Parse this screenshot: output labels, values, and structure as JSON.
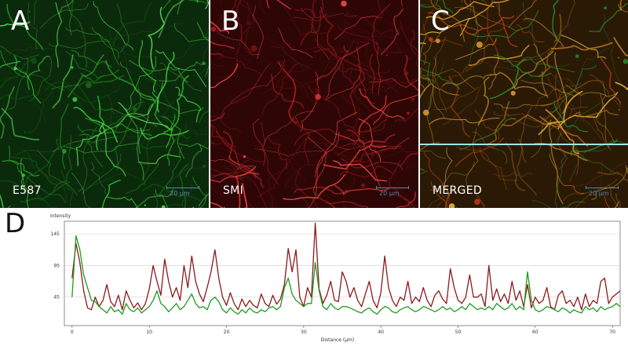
{
  "panels": [
    {
      "letter": "A",
      "label": "E587",
      "scale": "20 µm",
      "channel": "green",
      "base": "#0b2a0b",
      "accent": "#3fd13f"
    },
    {
      "letter": "B",
      "label": "SMI",
      "scale": "20 µm",
      "channel": "red",
      "base": "#2e0606",
      "accent": "#e23434"
    },
    {
      "letter": "C",
      "label": "MERGED",
      "scale": "20 µm",
      "channel": "merged",
      "base": "#2a1a05",
      "accent": "#e0a030",
      "line_color": "#9fe6e6"
    }
  ],
  "plot": {
    "letter": "D",
    "ylabel": "Intensity",
    "xlabel": "Distance (µm)",
    "colors": {
      "red": "#8b1a1a",
      "green": "#1f9a1f"
    }
  },
  "chart_data": {
    "type": "line",
    "title": "",
    "xlabel": "Distance (µm)",
    "ylabel": "Intensity",
    "xlim": [
      -1,
      71
    ],
    "ylim": [
      0,
      165
    ],
    "xticks": [
      0,
      10,
      20,
      30,
      40,
      50,
      60,
      70
    ],
    "yticks": [
      45,
      95,
      145
    ],
    "grid": true,
    "series": [
      {
        "color": "#8b1a1a",
        "x": [
          0,
          0.5,
          1,
          1.5,
          2,
          2.5,
          3,
          3.5,
          4,
          4.5,
          5,
          5.5,
          6,
          6.5,
          7,
          7.5,
          8,
          8.5,
          9,
          9.5,
          10,
          10.5,
          11,
          11.5,
          12,
          12.5,
          13,
          13.5,
          14,
          14.5,
          15,
          15.5,
          16,
          16.5,
          17,
          17.5,
          18,
          18.5,
          19,
          19.5,
          20,
          20.5,
          21,
          21.5,
          22,
          22.5,
          23,
          23.5,
          24,
          24.5,
          25,
          25.5,
          26,
          26.5,
          27,
          27.5,
          28,
          28.5,
          29,
          29.5,
          30,
          30.5,
          31,
          31.5,
          32,
          32.5,
          33,
          33.5,
          34,
          34.5,
          35,
          35.5,
          36,
          36.5,
          37,
          37.5,
          38,
          38.5,
          39,
          39.5,
          40,
          40.5,
          41,
          41.5,
          42,
          42.5,
          43,
          43.5,
          44,
          44.5,
          45,
          45.5,
          46,
          46.5,
          47,
          47.5,
          48,
          48.5,
          49,
          49.5,
          50,
          50.5,
          51,
          51.5,
          52,
          52.5,
          53,
          53.5,
          54,
          54.5,
          55,
          55.5,
          56,
          56.5,
          57,
          57.5,
          58,
          58.5,
          59,
          59.5,
          60,
          60.5,
          61,
          61.5,
          62,
          62.5,
          63,
          63.5,
          64,
          64.5,
          65,
          65.5,
          66,
          66.5,
          67,
          67.5,
          68,
          68.5,
          69,
          69.5,
          70,
          70.5,
          71
        ],
        "y": [
          75,
          130,
          100,
          55,
          28,
          25,
          45,
          30,
          40,
          65,
          38,
          30,
          48,
          25,
          55,
          40,
          28,
          36,
          25,
          35,
          58,
          95,
          70,
          48,
          105,
          70,
          45,
          60,
          40,
          95,
          60,
          110,
          70,
          50,
          38,
          60,
          85,
          120,
          75,
          45,
          32,
          52,
          35,
          25,
          42,
          30,
          40,
          32,
          28,
          50,
          35,
          30,
          48,
          34,
          42,
          65,
          122,
          85,
          120,
          45,
          30,
          60,
          45,
          162,
          58,
          35,
          48,
          70,
          40,
          38,
          85,
          70,
          45,
          60,
          40,
          30,
          50,
          70,
          40,
          28,
          52,
          110,
          60,
          40,
          30,
          45,
          40,
          70,
          35,
          45,
          38,
          60,
          40,
          30,
          48,
          55,
          42,
          35,
          90,
          60,
          40,
          35,
          45,
          80,
          45,
          45,
          50,
          30,
          95,
          40,
          58,
          38,
          50,
          35,
          70,
          40,
          55,
          30,
          65,
          28,
          45,
          35,
          40,
          60,
          30,
          25,
          48,
          55,
          35,
          40,
          30,
          45,
          25,
          50,
          30,
          40,
          35,
          70,
          75,
          35,
          45,
          50,
          55
        ]
      },
      {
        "color": "#1f9a1f",
        "x": [
          0,
          0.5,
          1,
          1.5,
          2,
          2.5,
          3,
          3.5,
          4,
          4.5,
          5,
          5.5,
          6,
          6.5,
          7,
          7.5,
          8,
          8.5,
          9,
          9.5,
          10,
          10.5,
          11,
          11.5,
          12,
          12.5,
          13,
          13.5,
          14,
          14.5,
          15,
          15.5,
          16,
          16.5,
          17,
          17.5,
          18,
          18.5,
          19,
          19.5,
          20,
          20.5,
          21,
          21.5,
          22,
          22.5,
          23,
          23.5,
          24,
          24.5,
          25,
          25.5,
          26,
          26.5,
          27,
          27.5,
          28,
          28.5,
          29,
          29.5,
          30,
          30.5,
          31,
          31.5,
          32,
          32.5,
          33,
          33.5,
          34,
          34.5,
          35,
          35.5,
          36,
          36.5,
          37,
          37.5,
          38,
          38.5,
          39,
          39.5,
          40,
          40.5,
          41,
          41.5,
          42,
          42.5,
          43,
          43.5,
          44,
          44.5,
          45,
          45.5,
          46,
          46.5,
          47,
          47.5,
          48,
          48.5,
          49,
          49.5,
          50,
          50.5,
          51,
          51.5,
          52,
          52.5,
          53,
          53.5,
          54,
          54.5,
          55,
          55.5,
          56,
          56.5,
          57,
          57.5,
          58,
          58.5,
          59,
          59.5,
          60,
          60.5,
          61,
          61.5,
          62,
          62.5,
          63,
          63.5,
          64,
          64.5,
          65,
          65.5,
          66,
          66.5,
          67,
          67.5,
          68,
          68.5,
          69,
          69.5,
          70,
          70.5,
          71
        ],
        "y": [
          45,
          142,
          120,
          80,
          60,
          40,
          38,
          30,
          25,
          20,
          30,
          22,
          25,
          18,
          35,
          25,
          22,
          28,
          20,
          25,
          30,
          40,
          55,
          35,
          30,
          22,
          28,
          35,
          25,
          30,
          40,
          50,
          35,
          28,
          30,
          25,
          40,
          45,
          38,
          25,
          20,
          28,
          22,
          18,
          25,
          20,
          28,
          22,
          20,
          25,
          22,
          28,
          30,
          25,
          30,
          60,
          75,
          50,
          40,
          35,
          30,
          35,
          35,
          100,
          55,
          30,
          25,
          35,
          28,
          25,
          30,
          30,
          28,
          25,
          22,
          20,
          25,
          28,
          22,
          18,
          25,
          30,
          28,
          22,
          20,
          25,
          28,
          30,
          25,
          22,
          25,
          30,
          28,
          25,
          22,
          25,
          30,
          25,
          28,
          22,
          25,
          30,
          25,
          35,
          30,
          25,
          28,
          25,
          30,
          25,
          35,
          30,
          25,
          28,
          35,
          25,
          30,
          25,
          85,
          40,
          25,
          22,
          25,
          30,
          28,
          25,
          22,
          28,
          25,
          20,
          25,
          22,
          20,
          30,
          25,
          28,
          22,
          30,
          25,
          28,
          30,
          35,
          30
        ]
      }
    ]
  }
}
